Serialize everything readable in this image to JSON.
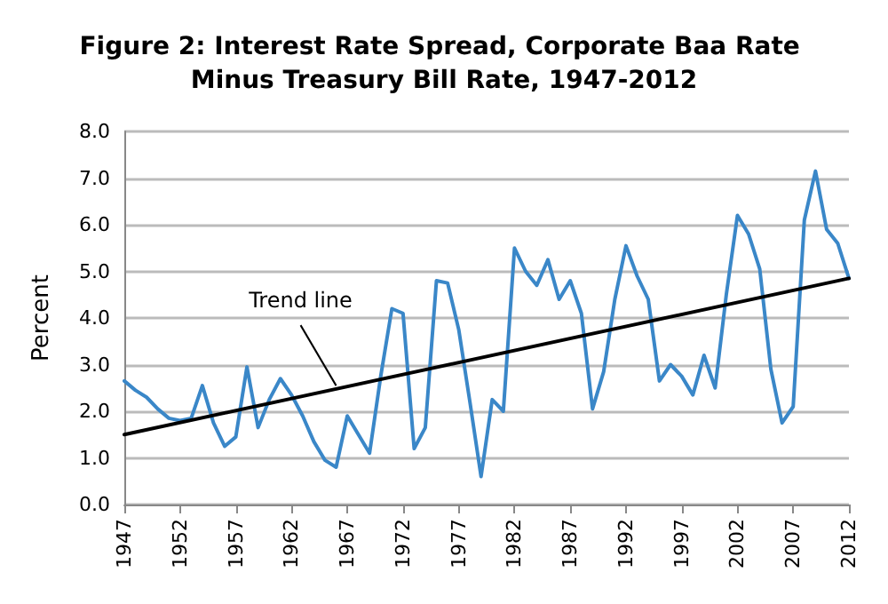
{
  "chart_data": {
    "type": "line",
    "title": "Figure 2: Interest Rate Spread, Corporate Baa Rate Minus Treasury Bill Rate, 1947-2012",
    "ylabel": "Percent",
    "x": [
      1947,
      1948,
      1949,
      1950,
      1951,
      1952,
      1953,
      1954,
      1955,
      1956,
      1957,
      1958,
      1959,
      1960,
      1961,
      1962,
      1963,
      1964,
      1965,
      1966,
      1967,
      1968,
      1969,
      1970,
      1971,
      1972,
      1973,
      1974,
      1975,
      1976,
      1977,
      1978,
      1979,
      1980,
      1981,
      1982,
      1983,
      1984,
      1985,
      1986,
      1987,
      1988,
      1989,
      1990,
      1991,
      1992,
      1993,
      1994,
      1995,
      1996,
      1997,
      1998,
      1999,
      2000,
      2001,
      2002,
      2003,
      2004,
      2005,
      2006,
      2007,
      2008,
      2009,
      2010,
      2011,
      2012
    ],
    "series": [
      {
        "color": "#3a87c8",
        "values": [
          2.65,
          2.45,
          2.3,
          2.05,
          1.85,
          1.8,
          1.85,
          2.55,
          1.75,
          1.25,
          1.45,
          2.95,
          1.65,
          2.25,
          2.7,
          2.35,
          1.9,
          1.35,
          0.95,
          0.8,
          1.9,
          1.5,
          1.1,
          2.75,
          4.2,
          4.1,
          1.2,
          1.65,
          4.8,
          4.75,
          3.75,
          2.2,
          0.6,
          2.25,
          2.0,
          5.5,
          5.0,
          4.7,
          5.25,
          4.4,
          4.8,
          4.1,
          2.05,
          2.85,
          4.4,
          5.55,
          4.9,
          4.4,
          2.65,
          3.0,
          2.75,
          2.35,
          3.2,
          2.5,
          4.5,
          6.2,
          5.8,
          5.05,
          2.9,
          1.75,
          2.1,
          6.1,
          7.15,
          5.9,
          5.6,
          4.85
        ]
      },
      {
        "type": "line",
        "color": "#000000",
        "x": [
          1947,
          2012
        ],
        "values": [
          1.5,
          4.85
        ]
      }
    ],
    "annotations": [
      {
        "text": "Trend line",
        "x": 1966,
        "y": 2.55
      }
    ],
    "xlim": [
      1947,
      2012
    ],
    "xticks": [
      1947,
      1952,
      1957,
      1962,
      1967,
      1972,
      1977,
      1982,
      1987,
      1992,
      1997,
      2002,
      2007,
      2012
    ],
    "ylim": [
      0,
      8
    ],
    "yticks": [
      {
        "value": 0,
        "label": "0.0"
      },
      {
        "value": 1,
        "label": "1.0"
      },
      {
        "value": 2,
        "label": "2.0"
      },
      {
        "value": 3,
        "label": "3.0"
      },
      {
        "value": 4,
        "label": "4.0"
      },
      {
        "value": 5,
        "label": "5.0"
      },
      {
        "value": 6,
        "label": "6.0"
      },
      {
        "value": 7,
        "label": "7.0"
      },
      {
        "value": 8,
        "label": "8.0"
      }
    ],
    "grid": "y",
    "marker": "none",
    "line_style": "solid"
  }
}
